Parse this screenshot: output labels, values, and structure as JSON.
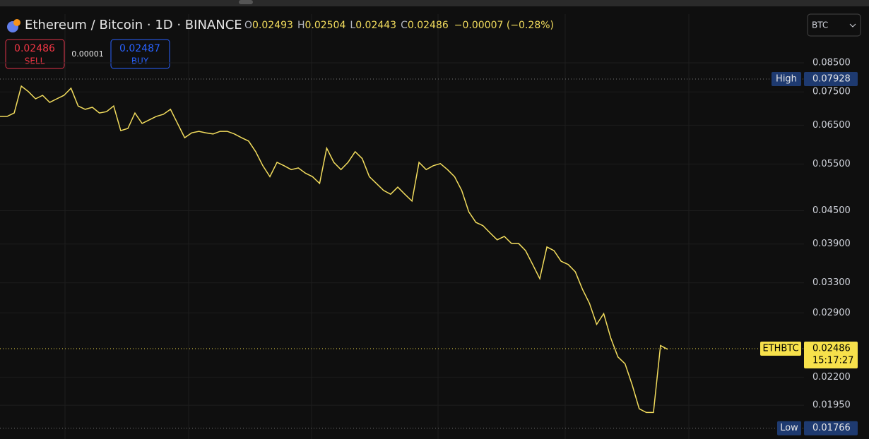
{
  "toolbar": {
    "title": "Ethereum / Bitcoin · 1D · BINANCE",
    "ohlc": [
      {
        "label": "O",
        "value": 0.02493
      },
      {
        "label": "H",
        "value": 0.02504
      },
      {
        "label": "L",
        "value": 0.02443
      },
      {
        "label": "C",
        "value": 0.02486
      }
    ],
    "change": "−0.00007 (−0.28%)",
    "sell": {
      "price": 0.02486,
      "label": "SELL"
    },
    "spread": 1e-05,
    "buy": {
      "price": 0.02487,
      "label": "BUY"
    },
    "currency": "BTC"
  },
  "chart_data": {
    "type": "line",
    "log_scale": true,
    "grid": true,
    "series": [
      {
        "name": "ETHBTC",
        "color": "#f2dc5d",
        "values": [
          0.0675,
          0.0675,
          0.0685,
          0.0769,
          0.0751,
          0.0728,
          0.0739,
          0.0717,
          0.0728,
          0.0739,
          0.0762,
          0.0706,
          0.0696,
          0.0702,
          0.0685,
          0.0689,
          0.0706,
          0.0635,
          0.0641,
          0.0685,
          0.0655,
          0.0665,
          0.0675,
          0.0681,
          0.0696,
          0.0655,
          0.0616,
          0.0629,
          0.0633,
          0.0629,
          0.0626,
          0.0633,
          0.0633,
          0.0626,
          0.0616,
          0.0607,
          0.058,
          0.0546,
          0.0521,
          0.0554,
          0.0546,
          0.0537,
          0.0541,
          0.0529,
          0.0521,
          0.0506,
          0.0589,
          0.0554,
          0.0537,
          0.0554,
          0.058,
          0.0563,
          0.0521,
          0.0506,
          0.0491,
          0.0483,
          0.0498,
          0.0483,
          0.0469,
          0.0554,
          0.0537,
          0.0546,
          0.0551,
          0.0537,
          0.0521,
          0.0491,
          0.0448,
          0.0428,
          0.0422,
          0.0409,
          0.0397,
          0.0403,
          0.0391,
          0.0391,
          0.0379,
          0.0357,
          0.0336,
          0.0385,
          0.0379,
          0.0362,
          0.0357,
          0.0346,
          0.0321,
          0.0302,
          0.0276,
          0.0289,
          0.026,
          0.024,
          0.0233,
          0.0213,
          0.0192,
          0.0189,
          0.0189,
          0.0252,
          0.0248
        ]
      }
    ],
    "ylim": [
      0.01686,
      0.1048
    ],
    "yticks": [
      {
        "value": 0.085,
        "label": "0.08500"
      },
      {
        "value": 0.075,
        "label": "0.07500"
      },
      {
        "value": 0.065,
        "label": "0.06500"
      },
      {
        "value": 0.055,
        "label": "0.05500"
      },
      {
        "value": 0.045,
        "label": "0.04500"
      },
      {
        "value": 0.039,
        "label": "0.03900"
      },
      {
        "value": 0.033,
        "label": "0.03300"
      },
      {
        "value": 0.029,
        "label": "0.02900"
      },
      {
        "value": 0.022,
        "label": "0.02200"
      },
      {
        "value": 0.0195,
        "label": "0.01950"
      }
    ],
    "price_lines": [
      {
        "label": "High",
        "value": 0.07928,
        "color": "#1e3a70"
      },
      {
        "label": "ETHBTC",
        "value": 0.02486,
        "color": "#f7e14b",
        "countdown": "15:17:27"
      },
      {
        "label": "Low",
        "value": 0.01766,
        "color": "#1e3a70"
      }
    ]
  }
}
